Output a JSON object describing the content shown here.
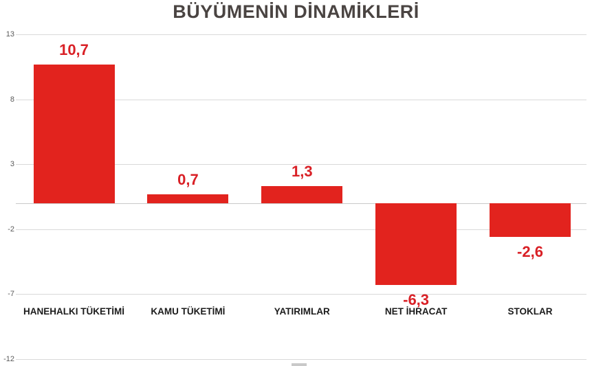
{
  "chart_data": {
    "type": "bar",
    "title": "BÜYÜMENİN DİNAMİKLERİ",
    "categories": [
      "HANEHALKI TÜKETİMİ",
      "KAMU TÜKETİMİ",
      "YATIRIMLAR",
      "NET İHRACAT",
      "STOKLAR"
    ],
    "values": [
      10.7,
      0.7,
      1.3,
      -6.3,
      -2.6
    ],
    "value_labels": [
      "10,7",
      "0,7",
      "1,3",
      "-6,3",
      "-2,6"
    ],
    "y_ticks": [
      13,
      8,
      3,
      -2,
      -7,
      -12
    ],
    "ylim": [
      -12,
      13
    ],
    "xlabel": "",
    "ylabel": "",
    "grid": true,
    "legend_position": "none",
    "colors": {
      "bar": "#e2231e",
      "value_label": "#d92026",
      "title": "#4a4442",
      "category_label": "#1b1b1b",
      "tick_label": "#595959",
      "gridline": "#d9d9d9",
      "zero_line": "#c9c9c9",
      "background": "#ffffff"
    }
  }
}
